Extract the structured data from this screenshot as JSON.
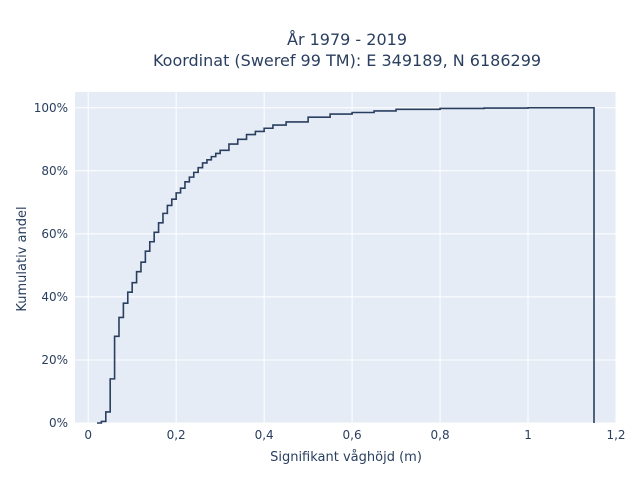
{
  "chart_data": {
    "type": "line",
    "line_shape": "step",
    "title_line1": "År 1979 - 2019",
    "title_line2": "Koordinat (Sweref 99 TM): E 349189, N 6186299",
    "xlabel": "Signifikant våghöjd (m)",
    "ylabel": "Kumulativ andel",
    "xlim": [
      -0.03,
      1.2
    ],
    "ylim": [
      0,
      1.05
    ],
    "x_ticks": [
      0,
      0.2,
      0.4,
      0.6,
      0.8,
      1.0,
      1.2
    ],
    "x_tick_labels": [
      "0",
      "0,2",
      "0,4",
      "0,6",
      "0,8",
      "1",
      "1,2"
    ],
    "y_ticks": [
      0,
      0.2,
      0.4,
      0.6,
      0.8,
      1.0
    ],
    "y_tick_labels": [
      "0%",
      "20%",
      "40%",
      "60%",
      "80%",
      "100%"
    ],
    "grid": true,
    "colors": {
      "plot_bg": "#e5ecf6",
      "grid": "#ffffff",
      "line": "#2a3f5f",
      "text": "#2a3f5f"
    },
    "series": [
      {
        "x": [
          0.02,
          0.03,
          0.04,
          0.05,
          0.06,
          0.07,
          0.08,
          0.09,
          0.1,
          0.11,
          0.12,
          0.13,
          0.14,
          0.15,
          0.16,
          0.17,
          0.18,
          0.19,
          0.2,
          0.21,
          0.22,
          0.23,
          0.24,
          0.25,
          0.26,
          0.27,
          0.28,
          0.29,
          0.3,
          0.32,
          0.34,
          0.36,
          0.38,
          0.4,
          0.42,
          0.45,
          0.5,
          0.55,
          0.6,
          0.65,
          0.7,
          0.8,
          0.9,
          1.0,
          1.15
        ],
        "y": [
          0.0,
          0.005,
          0.035,
          0.14,
          0.275,
          0.335,
          0.38,
          0.415,
          0.445,
          0.48,
          0.51,
          0.545,
          0.575,
          0.605,
          0.635,
          0.665,
          0.69,
          0.71,
          0.73,
          0.745,
          0.765,
          0.78,
          0.795,
          0.81,
          0.825,
          0.835,
          0.845,
          0.855,
          0.865,
          0.885,
          0.9,
          0.915,
          0.925,
          0.935,
          0.945,
          0.955,
          0.97,
          0.98,
          0.985,
          0.99,
          0.995,
          0.998,
          0.999,
          1.0,
          1.0
        ]
      }
    ]
  }
}
